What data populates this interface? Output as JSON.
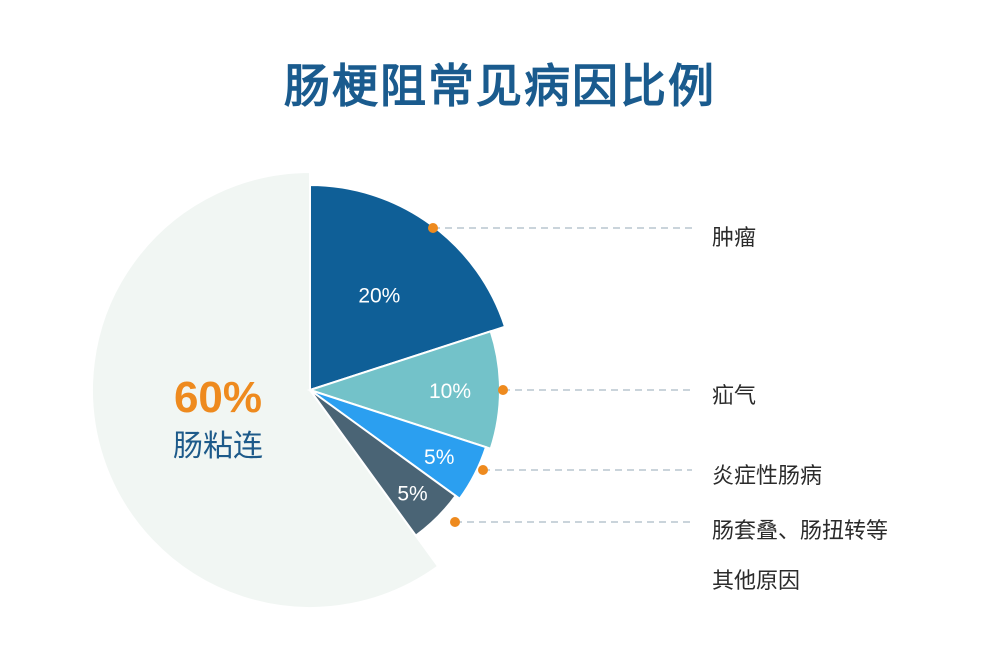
{
  "chart_data": {
    "type": "pie",
    "title": "肠梗阻常见病因比例",
    "slices": [
      {
        "label": "肠粘连",
        "value": 60,
        "value_label": "60%",
        "color": "#f1f6f3"
      },
      {
        "label": "肿瘤",
        "value": 20,
        "value_label": "20%",
        "color": "#0f5f97"
      },
      {
        "label": "疝气",
        "value": 10,
        "value_label": "10%",
        "color": "#73c2c9"
      },
      {
        "label": "炎症性肠病",
        "value": 5,
        "value_label": "5%",
        "color": "#2b9ff0"
      },
      {
        "label": "肠套叠、肠扭转等其他原因",
        "value": 5,
        "value_label": "5%",
        "color": "#4a6475"
      }
    ],
    "accent_color": "#ee8a1e",
    "legend_placement": "right"
  },
  "legend": {
    "tumor": "肿瘤",
    "hernia": "疝气",
    "ibd": "炎症性肠病",
    "other_line1": "肠套叠、肠扭转等",
    "other_line2": "其他原因"
  }
}
